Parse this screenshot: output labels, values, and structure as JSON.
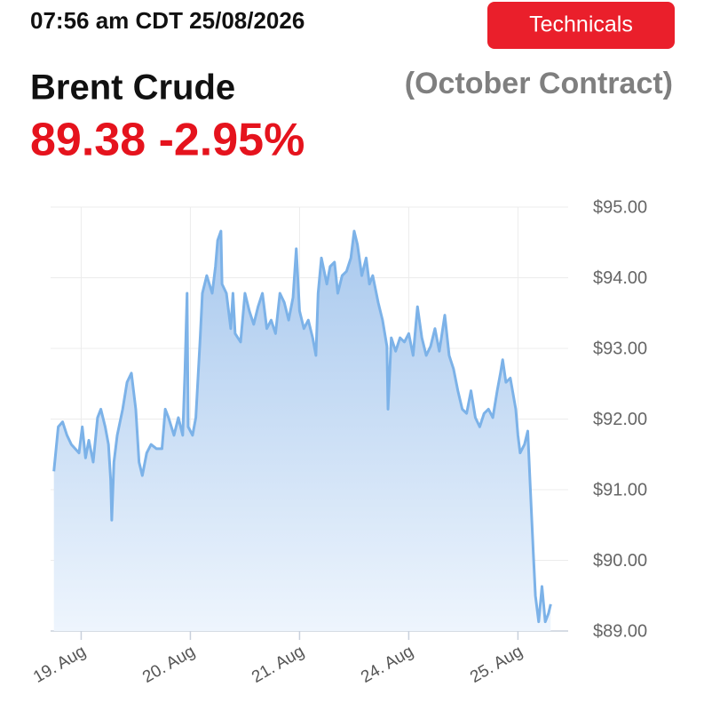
{
  "header": {
    "timestamp": "07:56 am CDT 25/08/2026",
    "button": "Technicals",
    "title": "Brent Crude",
    "subtitle": "(October Contract)",
    "price": "89.38 -2.95%"
  },
  "chart_data": {
    "type": "area",
    "x": [
      -0.25,
      -0.21,
      -0.17,
      -0.13,
      -0.09,
      -0.02,
      0.01,
      0.04,
      0.07,
      0.11,
      0.15,
      0.18,
      0.22,
      0.25,
      0.27,
      0.28,
      0.3,
      0.33,
      0.38,
      0.42,
      0.46,
      0.5,
      0.53,
      0.56,
      0.6,
      0.64,
      0.69,
      0.74,
      0.77,
      0.8,
      0.85,
      0.89,
      0.93,
      0.95,
      0.97,
      0.98,
      1.02,
      1.05,
      1.09,
      1.11,
      1.15,
      1.2,
      1.23,
      1.25,
      1.28,
      1.29,
      1.33,
      1.37,
      1.39,
      1.41,
      1.46,
      1.5,
      1.54,
      1.58,
      1.62,
      1.66,
      1.7,
      1.74,
      1.78,
      1.82,
      1.86,
      1.9,
      1.94,
      1.97,
      2.0,
      2.04,
      2.08,
      2.12,
      2.15,
      2.17,
      2.2,
      2.25,
      2.28,
      2.32,
      2.35,
      2.39,
      2.43,
      2.47,
      2.5,
      2.53,
      2.57,
      2.61,
      2.64,
      2.67,
      2.72,
      2.76,
      2.8,
      2.81,
      2.84,
      2.88,
      2.92,
      2.96,
      3.0,
      3.04,
      3.08,
      3.12,
      3.16,
      3.2,
      3.24,
      3.28,
      3.33,
      3.37,
      3.41,
      3.45,
      3.49,
      3.53,
      3.57,
      3.61,
      3.65,
      3.69,
      3.73,
      3.77,
      3.81,
      3.84,
      3.86,
      3.89,
      3.93,
      3.98,
      4.0,
      4.02,
      4.06,
      4.09,
      4.11,
      4.14,
      4.16,
      4.19,
      4.22,
      4.25,
      4.28,
      4.3
    ],
    "values": [
      91.26,
      91.89,
      91.96,
      91.77,
      91.64,
      91.52,
      91.89,
      91.45,
      91.7,
      91.39,
      92.02,
      92.14,
      91.89,
      91.64,
      91.14,
      90.57,
      91.39,
      91.77,
      92.14,
      92.52,
      92.65,
      92.14,
      91.39,
      91.2,
      91.52,
      91.64,
      91.58,
      91.58,
      92.14,
      92.02,
      91.77,
      92.02,
      91.77,
      92.65,
      93.78,
      91.89,
      91.77,
      92.02,
      93.15,
      93.78,
      94.03,
      93.78,
      94.16,
      94.53,
      94.66,
      93.91,
      93.78,
      93.28,
      93.78,
      93.21,
      93.09,
      93.78,
      93.53,
      93.34,
      93.59,
      93.78,
      93.28,
      93.4,
      93.21,
      93.78,
      93.65,
      93.4,
      93.72,
      94.41,
      93.53,
      93.28,
      93.4,
      93.15,
      92.9,
      93.78,
      94.28,
      93.91,
      94.16,
      94.22,
      93.78,
      94.03,
      94.09,
      94.28,
      94.66,
      94.47,
      94.03,
      94.28,
      93.91,
      94.03,
      93.65,
      93.4,
      93.03,
      92.14,
      93.15,
      92.96,
      93.15,
      93.09,
      93.21,
      92.9,
      93.59,
      93.15,
      92.9,
      93.03,
      93.28,
      92.96,
      93.47,
      92.9,
      92.71,
      92.4,
      92.14,
      92.08,
      92.4,
      92.02,
      91.89,
      92.08,
      92.14,
      92.02,
      92.4,
      92.65,
      92.84,
      92.52,
      92.58,
      92.14,
      91.77,
      91.52,
      91.64,
      91.83,
      91.14,
      90.13,
      89.5,
      89.13,
      89.63,
      89.13,
      89.25,
      89.38
    ],
    "color": "#7cb2e8",
    "xlim": [
      -0.28,
      4.46
    ],
    "xticks": [
      {
        "value": 0,
        "label": "19. Aug"
      },
      {
        "value": 1,
        "label": "20. Aug"
      },
      {
        "value": 2,
        "label": "21. Aug"
      },
      {
        "value": 3,
        "label": "24. Aug"
      },
      {
        "value": 4,
        "label": "25. Aug"
      }
    ],
    "ylim": [
      89,
      95
    ],
    "yticks": [
      {
        "value": 89,
        "label": "$89.00"
      },
      {
        "value": 90,
        "label": "$90.00"
      },
      {
        "value": 91,
        "label": "$91.00"
      },
      {
        "value": 92,
        "label": "$92.00"
      },
      {
        "value": 93,
        "label": "$93.00"
      },
      {
        "value": 94,
        "label": "$94.00"
      },
      {
        "value": 95,
        "label": "$95.00"
      }
    ],
    "grid": true
  }
}
